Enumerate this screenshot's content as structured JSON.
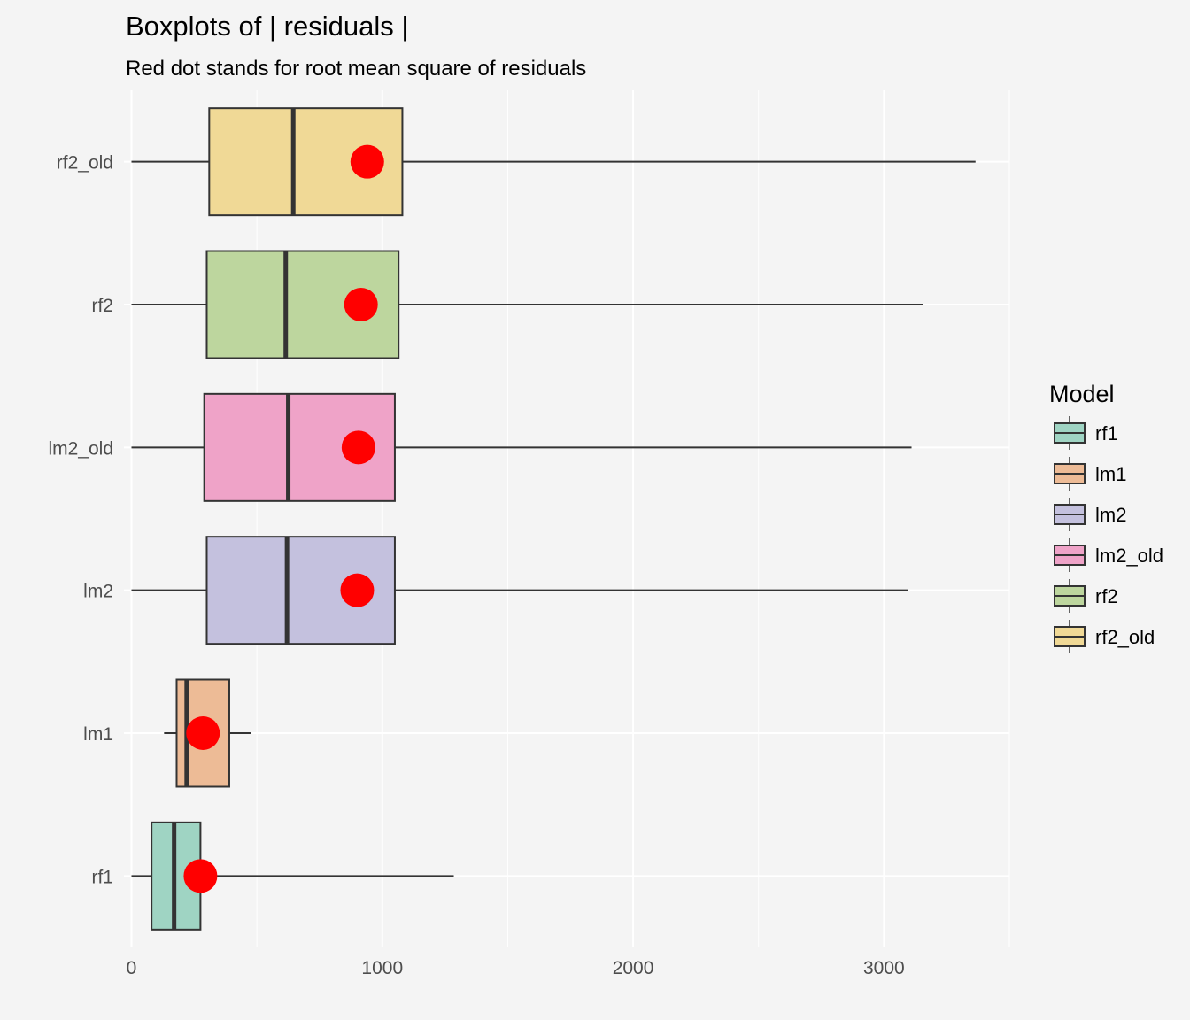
{
  "chart_data": {
    "type": "boxplot",
    "title": "Boxplots of | residuals |",
    "subtitle": "Red dot stands for root mean square of residuals",
    "xlabel": "",
    "ylabel": "",
    "xlim": [
      -30,
      3500
    ],
    "x_ticks": [
      0,
      1000,
      2000,
      3000
    ],
    "x_tick_labels": [
      "0",
      "1000",
      "2000",
      "3000"
    ],
    "grid": true,
    "legend": {
      "title": "Model",
      "position": "right",
      "entries": [
        {
          "label": "rf1",
          "color": "#9fd4c3"
        },
        {
          "label": "lm1",
          "color": "#edbb96"
        },
        {
          "label": "lm2",
          "color": "#c4c1de"
        },
        {
          "label": "lm2_old",
          "color": "#efa3c8"
        },
        {
          "label": "rf2",
          "color": "#bdd69e"
        },
        {
          "label": "rf2_old",
          "color": "#f0d996"
        }
      ]
    },
    "categories": [
      "rf1",
      "lm1",
      "lm2",
      "lm2_old",
      "rf2",
      "rf2_old"
    ],
    "boxes": [
      {
        "name": "rf1",
        "whisker_low": 0,
        "q1": 80,
        "median": 170,
        "q3": 275,
        "whisker_high": 1285,
        "rms": 275,
        "color": "#9fd4c3"
      },
      {
        "name": "lm1",
        "whisker_low": 130,
        "q1": 180,
        "median": 220,
        "q3": 390,
        "whisker_high": 475,
        "rms": 285,
        "color": "#edbb96"
      },
      {
        "name": "lm2",
        "whisker_low": 0,
        "q1": 300,
        "median": 620,
        "q3": 1050,
        "whisker_high": 3095,
        "rms": 900,
        "color": "#c4c1de"
      },
      {
        "name": "lm2_old",
        "whisker_low": 0,
        "q1": 290,
        "median": 625,
        "q3": 1050,
        "whisker_high": 3110,
        "rms": 905,
        "color": "#efa3c8"
      },
      {
        "name": "rf2",
        "whisker_low": 0,
        "q1": 300,
        "median": 615,
        "q3": 1065,
        "whisker_high": 3155,
        "rms": 915,
        "color": "#bdd69e"
      },
      {
        "name": "rf2_old",
        "whisker_low": 0,
        "q1": 310,
        "median": 645,
        "q3": 1080,
        "whisker_high": 3365,
        "rms": 940,
        "color": "#f0d996"
      }
    ],
    "rms_color": "#ff0000"
  }
}
